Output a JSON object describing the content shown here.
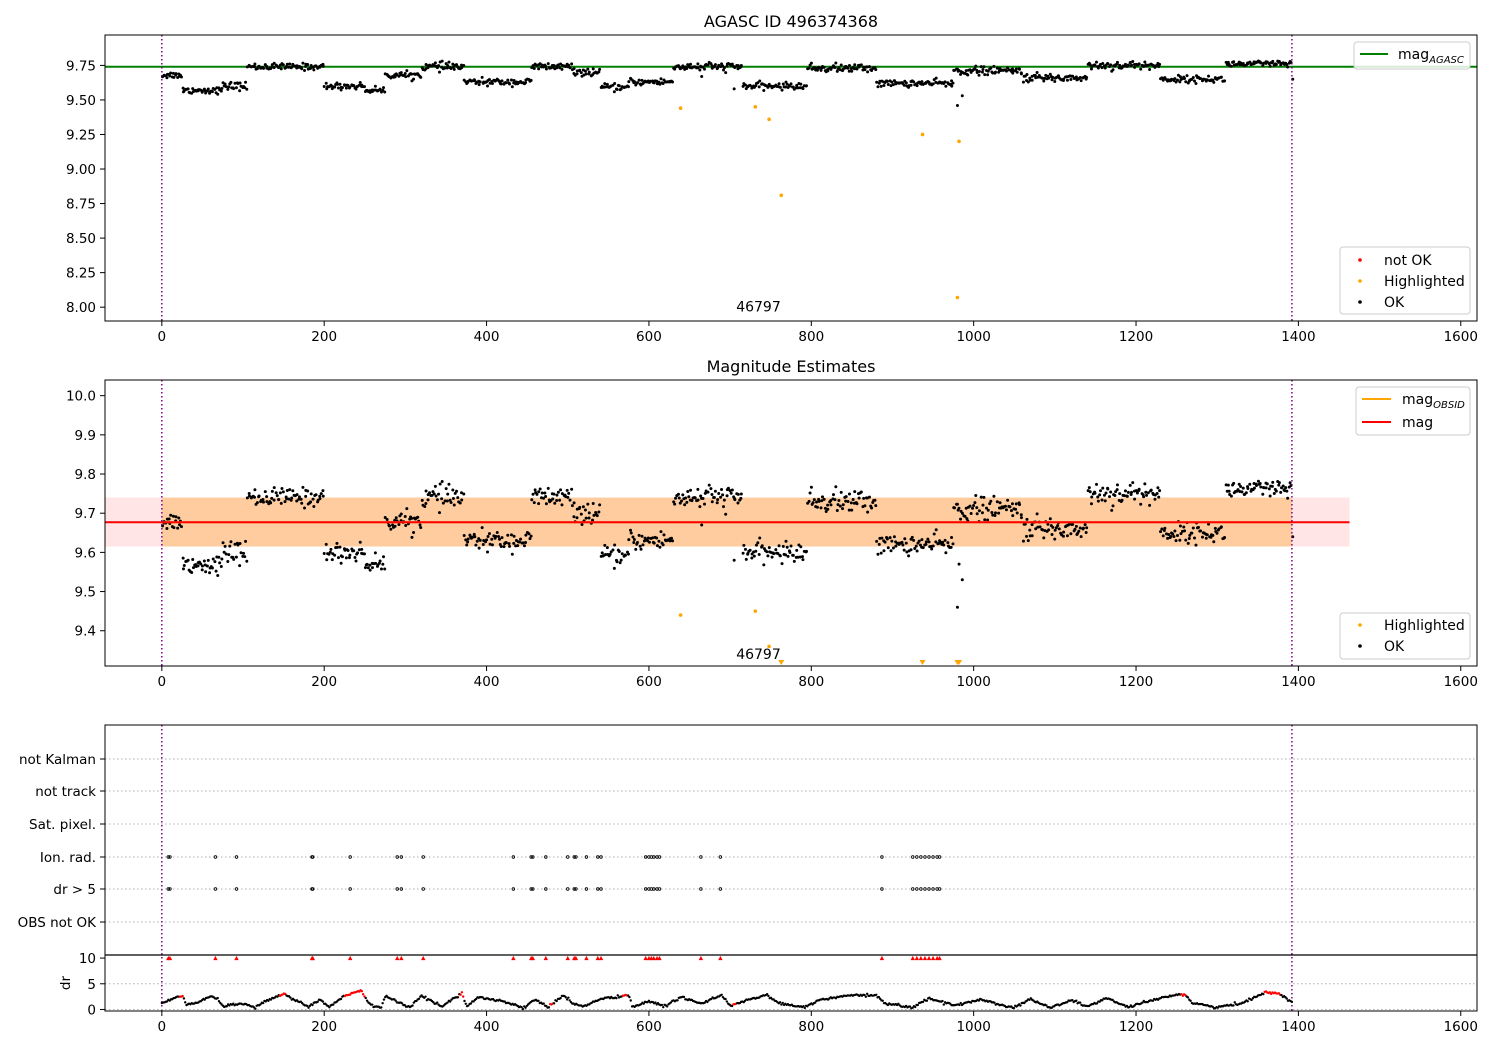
{
  "chart_data": [
    {
      "type": "scatter",
      "title": "AGASC ID 496374368",
      "xlabel": "",
      "ylabel": "",
      "xlim": [
        -70,
        1620
      ],
      "ylim": [
        7.9,
        9.97
      ],
      "xticks": [
        0,
        200,
        400,
        600,
        800,
        1000,
        1200,
        1400,
        1600
      ],
      "xtick_labels": [
        "0",
        "200",
        "400",
        "600",
        "800",
        "1000",
        "1200",
        "1400",
        "1600"
      ],
      "yticks": [
        8.0,
        8.25,
        8.5,
        8.75,
        9.0,
        9.25,
        9.5,
        9.75
      ],
      "ytick_labels": [
        "8.00",
        "8.25",
        "8.50",
        "8.75",
        "9.00",
        "9.25",
        "9.50",
        "9.75"
      ],
      "obsid_boundaries": [
        0,
        1392
      ],
      "obsid_annotation": {
        "text": "46797",
        "x": 698,
        "y": 7.99
      },
      "lines": [
        {
          "name": "mag_AGASC",
          "label_main": "mag",
          "label_sub": "AGASC",
          "color": "#008000",
          "y": 9.74,
          "x_range": [
            -70,
            1620
          ]
        }
      ],
      "series": [
        {
          "name": "not OK",
          "color": "#ff0000",
          "points": []
        },
        {
          "name": "Highlighted",
          "color": "#ffa500",
          "points": [
            [
              639,
              9.44
            ],
            [
              731,
              9.45
            ],
            [
              748,
              9.36
            ],
            [
              763,
              8.81
            ],
            [
              937,
              9.25
            ],
            [
              982,
              9.2
            ],
            [
              980,
              8.07
            ]
          ]
        },
        {
          "name": "OK",
          "color": "#000000",
          "segments": [
            {
              "x": [
                0,
                25
              ],
              "y": 9.68,
              "noise": 0.012
            },
            {
              "x": [
                25,
                75
              ],
              "y": 9.57,
              "noise": 0.012
            },
            {
              "x": [
                75,
                105
              ],
              "y": 9.6,
              "noise": 0.015
            },
            {
              "x": [
                105,
                200
              ],
              "y": 9.74,
              "noise": 0.012
            },
            {
              "x": [
                200,
                250
              ],
              "y": 9.6,
              "noise": 0.012
            },
            {
              "x": [
                250,
                275
              ],
              "y": 9.57,
              "noise": 0.01
            },
            {
              "x": [
                275,
                320
              ],
              "y": 9.68,
              "noise": 0.012
            },
            {
              "x": [
                320,
                372
              ],
              "y": 9.74,
              "noise": 0.015
            },
            {
              "x": [
                372,
                455
              ],
              "y": 9.63,
              "noise": 0.012
            },
            {
              "x": [
                455,
                505
              ],
              "y": 9.74,
              "noise": 0.015
            },
            {
              "x": [
                505,
                540
              ],
              "y": 9.7,
              "noise": 0.012
            },
            {
              "x": [
                540,
                575
              ],
              "y": 9.59,
              "noise": 0.012
            },
            {
              "x": [
                575,
                630
              ],
              "y": 9.63,
              "noise": 0.012
            },
            {
              "x": [
                630,
                715
              ],
              "y": 9.74,
              "noise": 0.015
            },
            {
              "x": [
                715,
                795
              ],
              "y": 9.6,
              "noise": 0.012
            },
            {
              "x": [
                795,
                880
              ],
              "y": 9.73,
              "noise": 0.015
            },
            {
              "x": [
                880,
                975
              ],
              "y": 9.62,
              "noise": 0.012
            },
            {
              "x": [
                975,
                1060
              ],
              "y": 9.71,
              "noise": 0.015
            },
            {
              "x": [
                1060,
                1140
              ],
              "y": 9.66,
              "noise": 0.015
            },
            {
              "x": [
                1140,
                1230
              ],
              "y": 9.75,
              "noise": 0.015
            },
            {
              "x": [
                1230,
                1310
              ],
              "y": 9.65,
              "noise": 0.012
            },
            {
              "x": [
                1310,
                1392
              ],
              "y": 9.76,
              "noise": 0.012
            }
          ],
          "extra_points": [
            [
              980,
              9.46
            ],
            [
              986,
              9.53
            ],
            [
              973,
              9.6
            ],
            [
              705,
              9.58
            ],
            [
              1393,
              9.65
            ],
            [
              665,
              9.67
            ]
          ]
        }
      ],
      "legends": [
        {
          "position": "upper right",
          "entries": [
            "mag_AGASC"
          ]
        },
        {
          "position": "lower right",
          "entries": [
            "not OK",
            "Highlighted",
            "OK"
          ]
        }
      ]
    },
    {
      "type": "scatter",
      "title": "Magnitude Estimates",
      "xlabel": "",
      "ylabel": "",
      "xlim": [
        -70,
        1620
      ],
      "ylim": [
        9.31,
        10.04
      ],
      "xticks": [
        0,
        200,
        400,
        600,
        800,
        1000,
        1200,
        1400,
        1600
      ],
      "xtick_labels": [
        "0",
        "200",
        "400",
        "600",
        "800",
        "1000",
        "1200",
        "1400",
        "1600"
      ],
      "yticks": [
        9.4,
        9.5,
        9.6,
        9.7,
        9.8,
        9.9,
        10.0
      ],
      "ytick_labels": [
        "9.4",
        "9.5",
        "9.6",
        "9.7",
        "9.8",
        "9.9",
        "10.0"
      ],
      "obsid_boundaries": [
        0,
        1392
      ],
      "obsid_annotation": {
        "text": "46797",
        "x": 698,
        "y": 9.34
      },
      "bands": [
        {
          "name": "mag_OBSID band",
          "x_range": [
            0,
            1392
          ],
          "y_range": [
            9.615,
            9.74
          ],
          "color": "#ffa500",
          "opacity": 0.3
        },
        {
          "name": "mag band",
          "x_range": [
            -70,
            1463
          ],
          "y_range": [
            9.615,
            9.74
          ],
          "color": "#ff0000",
          "opacity": 0.1
        }
      ],
      "lines": [
        {
          "name": "mag_OBSID",
          "label_main": "mag",
          "label_sub": "OBSID",
          "color": "#ffa500",
          "y": 9.677,
          "x_range": [
            0,
            1392
          ]
        },
        {
          "name": "mag",
          "label_main": "mag",
          "label_sub": "",
          "color": "#ff0000",
          "y": 9.677,
          "x_range": [
            -70,
            1463
          ]
        }
      ],
      "series": [
        {
          "name": "Highlighted",
          "color": "#ffa500",
          "points": [
            [
              639,
              9.44
            ],
            [
              731,
              9.45
            ],
            [
              748,
              9.36
            ]
          ],
          "clipped_markers": [
            763,
            937,
            980,
            982
          ]
        },
        {
          "name": "OK",
          "color": "#000000",
          "same_as_panel": 0,
          "extra_points": [
            [
              980,
              9.46
            ],
            [
              986,
              9.53
            ],
            [
              982,
              9.57
            ],
            [
              1393,
              9.64
            ],
            [
              705,
              9.58
            ],
            [
              665,
              9.67
            ]
          ]
        }
      ],
      "legends": [
        {
          "position": "upper right",
          "entries": [
            "mag_OBSID",
            "mag"
          ]
        },
        {
          "position": "lower right",
          "entries": [
            "Highlighted",
            "OK"
          ]
        }
      ]
    },
    {
      "type": "scatter",
      "title": "",
      "ylabel": "",
      "xlim": [
        -70,
        1620
      ],
      "categories": [
        "not Kalman",
        "not track",
        "Sat. pixel.",
        "Ion. rad.",
        "dr > 5",
        "OBS not OK"
      ],
      "obsid_boundaries": [
        0,
        1392
      ],
      "flag_x": [
        8,
        10,
        66,
        92,
        185,
        186,
        232,
        290,
        295,
        322,
        433,
        455,
        457,
        473,
        500,
        508,
        510,
        523,
        537,
        541,
        596,
        600,
        603,
        606,
        610,
        613,
        664,
        688,
        887,
        925,
        930,
        935,
        940,
        945,
        950,
        955,
        958
      ],
      "rows_flagged": [
        "Ion. rad.",
        "dr > 5"
      ]
    },
    {
      "type": "line",
      "title": "",
      "xlabel": "",
      "ylabel": "dr",
      "xlim": [
        -70,
        1620
      ],
      "ylim": [
        -0.3,
        10.6
      ],
      "xticks": [
        0,
        200,
        400,
        600,
        800,
        1000,
        1200,
        1400,
        1600
      ],
      "xtick_labels": [
        "0",
        "200",
        "400",
        "600",
        "800",
        "1000",
        "1200",
        "1400",
        "1600"
      ],
      "yticks": [
        0,
        5,
        10
      ],
      "ytick_labels": [
        "0",
        "5",
        "10"
      ],
      "obsid_boundaries": [
        0,
        1392
      ],
      "dr_profile": [
        [
          0,
          1.2
        ],
        [
          25,
          2.8
        ],
        [
          30,
          0.8
        ],
        [
          45,
          1.5
        ],
        [
          60,
          2.6
        ],
        [
          68,
          2.2
        ],
        [
          75,
          0.6
        ],
        [
          100,
          1.2
        ],
        [
          115,
          0.4
        ],
        [
          130,
          1.8
        ],
        [
          150,
          3.0
        ],
        [
          165,
          1.8
        ],
        [
          180,
          0.5
        ],
        [
          195,
          2.0
        ],
        [
          205,
          0.5
        ],
        [
          225,
          2.6
        ],
        [
          245,
          3.6
        ],
        [
          255,
          1.2
        ],
        [
          270,
          0.3
        ],
        [
          275,
          2.6
        ],
        [
          290,
          1.5
        ],
        [
          305,
          0.4
        ],
        [
          320,
          2.6
        ],
        [
          345,
          0.6
        ],
        [
          370,
          3.2
        ],
        [
          375,
          0.6
        ],
        [
          390,
          2.4
        ],
        [
          420,
          1.6
        ],
        [
          445,
          0.3
        ],
        [
          460,
          2.0
        ],
        [
          475,
          0.4
        ],
        [
          495,
          2.8
        ],
        [
          505,
          1.2
        ],
        [
          520,
          0.6
        ],
        [
          540,
          2.0
        ],
        [
          575,
          2.8
        ],
        [
          580,
          0.4
        ],
        [
          600,
          1.6
        ],
        [
          620,
          0.6
        ],
        [
          640,
          2.4
        ],
        [
          665,
          1.2
        ],
        [
          690,
          2.8
        ],
        [
          700,
          0.6
        ],
        [
          720,
          1.8
        ],
        [
          745,
          2.8
        ],
        [
          760,
          1.2
        ],
        [
          790,
          0.4
        ],
        [
          810,
          1.8
        ],
        [
          840,
          2.6
        ],
        [
          880,
          2.8
        ],
        [
          890,
          1.2
        ],
        [
          925,
          0.4
        ],
        [
          945,
          2.2
        ],
        [
          975,
          0.8
        ],
        [
          990,
          1.2
        ],
        [
          1010,
          2.0
        ],
        [
          1030,
          1.0
        ],
        [
          1050,
          0.4
        ],
        [
          1070,
          2.0
        ],
        [
          1095,
          0.3
        ],
        [
          1120,
          1.8
        ],
        [
          1140,
          0.6
        ],
        [
          1165,
          2.2
        ],
        [
          1190,
          0.4
        ],
        [
          1215,
          1.5
        ],
        [
          1245,
          2.8
        ],
        [
          1260,
          3.0
        ],
        [
          1270,
          1.2
        ],
        [
          1300,
          0.4
        ],
        [
          1330,
          1.2
        ],
        [
          1360,
          3.4
        ],
        [
          1375,
          3.2
        ],
        [
          1392,
          1.4
        ]
      ],
      "dr_red_ranges": [
        [
          22,
          26
        ],
        [
          145,
          152
        ],
        [
          225,
          250
        ],
        [
          368,
          372
        ],
        [
          478,
          482
        ],
        [
          568,
          574
        ],
        [
          704,
          708
        ],
        [
          1255,
          1262
        ],
        [
          1357,
          1378
        ]
      ],
      "dr_gt5_markers": [
        8,
        10,
        66,
        92,
        185,
        186,
        232,
        290,
        295,
        322,
        433,
        455,
        457,
        473,
        500,
        508,
        510,
        523,
        537,
        541,
        596,
        600,
        603,
        606,
        610,
        613,
        664,
        688,
        887,
        925,
        930,
        935,
        940,
        945,
        950,
        955,
        958
      ]
    }
  ],
  "legend_labels": {
    "not_ok": "not OK",
    "highlighted": "Highlighted",
    "ok": "OK",
    "mag": "mag"
  },
  "colors": {
    "green": "#008000",
    "orange": "#ffa500",
    "red": "#ff0000",
    "purple": "#800080",
    "black": "#000000",
    "grid": "#b0b0b0"
  }
}
